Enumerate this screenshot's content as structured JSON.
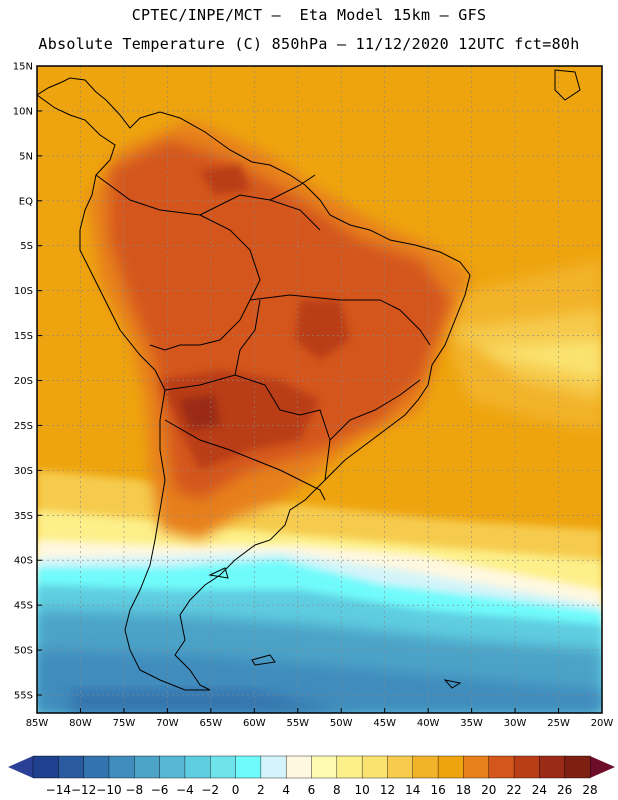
{
  "header": {
    "line1": "CPTEC/INPE/MCT –  Eta Model 15km – GFS",
    "line2": "Absolute Temperature (C) 850hPa – 11/12/2020 12UTC fct=80h"
  },
  "map": {
    "lat_labels": [
      "15N",
      "10N",
      "5N",
      "EQ",
      "5S",
      "10S",
      "15S",
      "20S",
      "25S",
      "30S",
      "35S",
      "40S",
      "45S",
      "50S",
      "55S"
    ],
    "lon_labels": [
      "85W",
      "80W",
      "75W",
      "70W",
      "65W",
      "60W",
      "55W",
      "50W",
      "45W",
      "40W",
      "35W",
      "30W",
      "25W",
      "20W"
    ],
    "lat_range": [
      15,
      -57
    ],
    "lon_range": [
      -85,
      -20
    ],
    "gridlines": true
  },
  "colorbar": {
    "labels": [
      "-14",
      "-12",
      "-10",
      "-8",
      "-6",
      "-4",
      "-2",
      "0",
      "2",
      "4",
      "6",
      "8",
      "10",
      "12",
      "14",
      "16",
      "18",
      "20",
      "22",
      "24",
      "26",
      "28"
    ],
    "colors": [
      "#1f3f8f",
      "#2a5a9f",
      "#3474ae",
      "#3f8cbd",
      "#4ba3c7",
      "#56b8d4",
      "#5fcde0",
      "#6fe3ea",
      "#6ffbfb",
      "#d3f4fa",
      "#fff8e0",
      "#fefab0",
      "#fdf08a",
      "#fbe371",
      "#f6cb4e",
      "#f2b32a",
      "#eea40e",
      "#e7801b",
      "#d4561a",
      "#b93e18",
      "#9a2b16",
      "#7e1f14"
    ],
    "under_color": "#2a3f96",
    "over_color": "#6e0d2a"
  }
}
